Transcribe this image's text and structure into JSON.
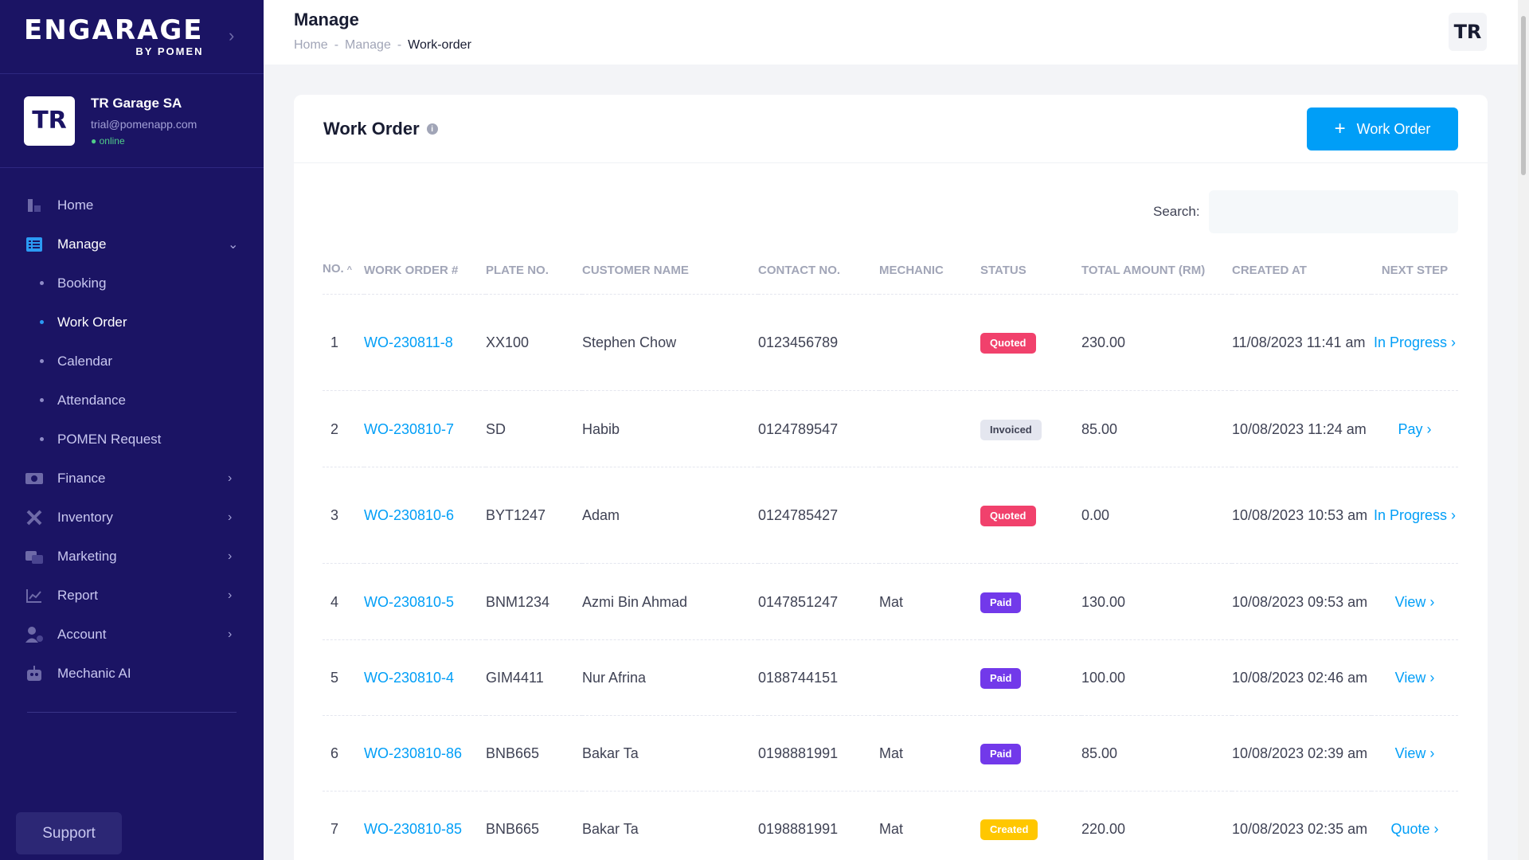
{
  "brand": {
    "name": "ENGARAGE",
    "sub": "BY POMEN"
  },
  "profile": {
    "initials": "TR",
    "name": "TR Garage SA",
    "email": "trial@pomenapp.com",
    "status": "online"
  },
  "nav": {
    "home": "Home",
    "manage": "Manage",
    "manage_sub": [
      "Booking",
      "Work Order",
      "Calendar",
      "Attendance",
      "POMEN Request"
    ],
    "finance": "Finance",
    "inventory": "Inventory",
    "marketing": "Marketing",
    "report": "Report",
    "account": "Account",
    "mechanic_ai": "Mechanic AI",
    "support": "Support"
  },
  "header": {
    "title": "Manage",
    "breadcrumb": [
      "Home",
      "Manage",
      "Work-order"
    ],
    "sep": "-",
    "avatar": "TR"
  },
  "card": {
    "title": "Work Order",
    "add_button": "Work Order",
    "search_label": "Search:",
    "search_value": ""
  },
  "table": {
    "columns": [
      "No.",
      "Work Order #",
      "Plate No.",
      "Customer Name",
      "Contact No.",
      "Mechanic",
      "Status",
      "Total Amount (RM)",
      "Created At",
      "Next Step"
    ],
    "rows": [
      {
        "no": "1",
        "wo": "WO-230811-8",
        "plate": "XX100",
        "customer": "Stephen Chow",
        "contact": "0123456789",
        "mechanic": "",
        "status": "Quoted",
        "status_type": "quoted",
        "amount": "230.00",
        "created": "11/08/2023 11:41 am",
        "next": "In Progress ›"
      },
      {
        "no": "2",
        "wo": "WO-230810-7",
        "plate": "SD",
        "customer": "Habib",
        "contact": "0124789547",
        "mechanic": "",
        "status": "Invoiced",
        "status_type": "invoiced",
        "amount": "85.00",
        "created": "10/08/2023 11:24 am",
        "next": "Pay ›"
      },
      {
        "no": "3",
        "wo": "WO-230810-6",
        "plate": "BYT1247",
        "customer": "Adam",
        "contact": "0124785427",
        "mechanic": "",
        "status": "Quoted",
        "status_type": "quoted",
        "amount": "0.00",
        "created": "10/08/2023 10:53 am",
        "next": "In Progress ›"
      },
      {
        "no": "4",
        "wo": "WO-230810-5",
        "plate": "BNM1234",
        "customer": "Azmi Bin Ahmad",
        "contact": "0147851247",
        "mechanic": "Mat",
        "status": "Paid",
        "status_type": "paid",
        "amount": "130.00",
        "created": "10/08/2023 09:53 am",
        "next": "View ›"
      },
      {
        "no": "5",
        "wo": "WO-230810-4",
        "plate": "GIM4411",
        "customer": "Nur Afrina",
        "contact": "0188744151",
        "mechanic": "",
        "status": "Paid",
        "status_type": "paid",
        "amount": "100.00",
        "created": "10/08/2023 02:46 am",
        "next": "View ›"
      },
      {
        "no": "6",
        "wo": "WO-230810-86",
        "plate": "BNB665",
        "customer": "Bakar Ta",
        "contact": "0198881991",
        "mechanic": "Mat",
        "status": "Paid",
        "status_type": "paid",
        "amount": "85.00",
        "created": "10/08/2023 02:39 am",
        "next": "View ›"
      },
      {
        "no": "7",
        "wo": "WO-230810-85",
        "plate": "BNB665",
        "customer": "Bakar Ta",
        "contact": "0198881991",
        "mechanic": "Mat",
        "status": "Created",
        "status_type": "created",
        "amount": "220.00",
        "created": "10/08/2023 02:35 am",
        "next": "Quote ›"
      }
    ]
  },
  "colors": {
    "sidebar": "#1b1464",
    "primary": "#009ef7",
    "quoted": "#f1416c",
    "paid": "#7239ea",
    "created": "#ffc700",
    "invoiced": "#e4e6ef"
  }
}
